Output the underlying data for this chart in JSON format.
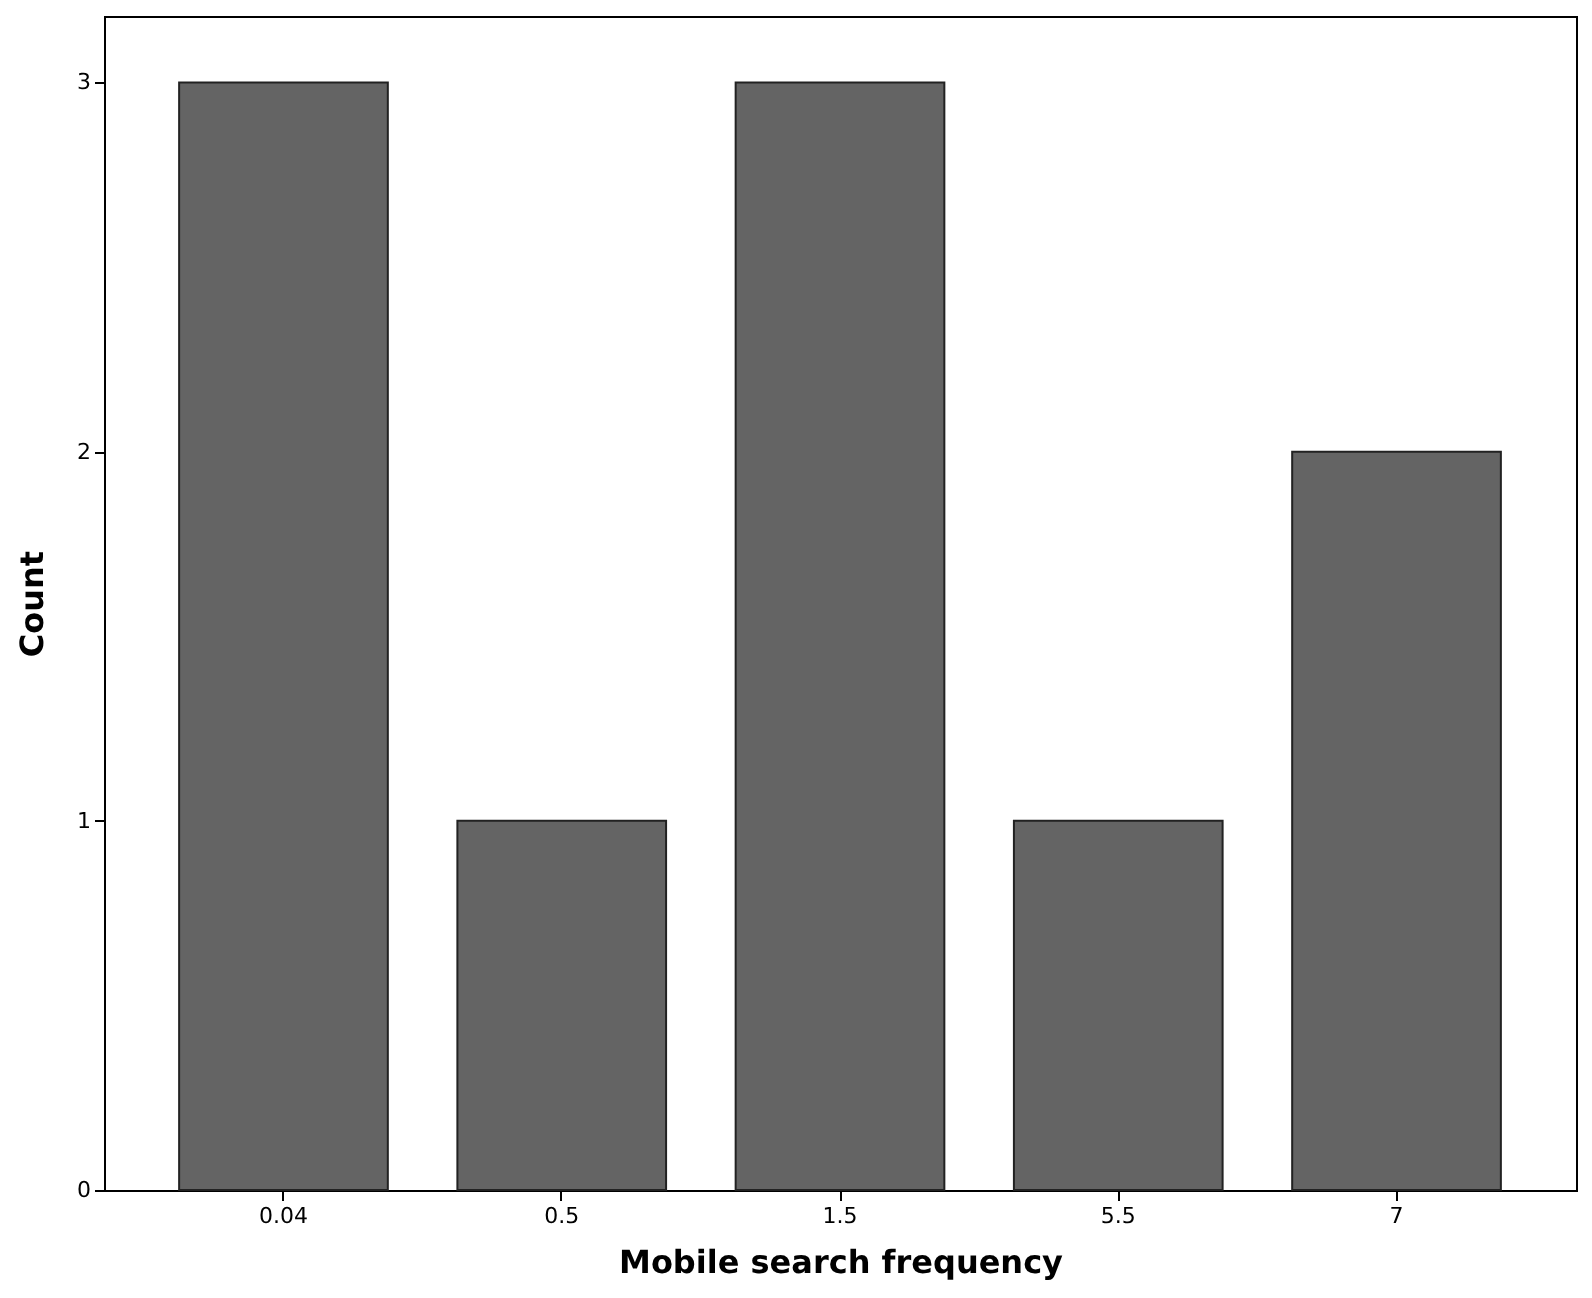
{
  "chart_data": {
    "type": "bar",
    "xlabel": "Mobile search frequency",
    "ylabel": "Count",
    "categories": [
      "0.04",
      "0.5",
      "1.5",
      "5.5",
      "7"
    ],
    "values": [
      3,
      1,
      3,
      1,
      2
    ],
    "color": "#646464",
    "ylim": [
      0,
      3.18
    ],
    "yticks": [
      0,
      1,
      2,
      3
    ],
    "grid": false
  }
}
